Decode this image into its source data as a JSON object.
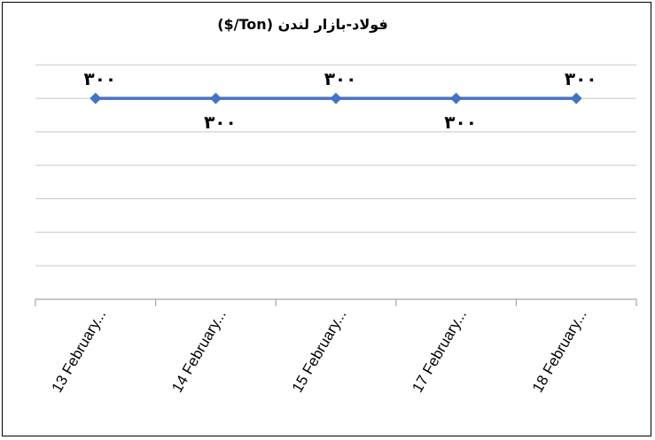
{
  "chart_data": {
    "type": "line",
    "title": "فولاد-بازار لندن (Ton/$)",
    "categories": [
      "13 February...",
      "14 February...",
      "15 February...",
      "17 February...",
      "18 February..."
    ],
    "series": [
      {
        "values": [
          300,
          300,
          300,
          300,
          300
        ],
        "data_labels": [
          "۳۰۰",
          "۳۰۰",
          "۳۰۰",
          "۳۰۰",
          "۳۰۰"
        ],
        "color": "#4472C4"
      }
    ],
    "xlabel": "",
    "ylabel": "",
    "ylim": [
      0,
      350
    ],
    "grid": true,
    "legend": "none"
  }
}
